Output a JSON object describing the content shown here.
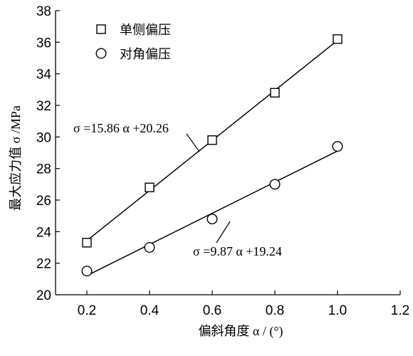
{
  "chart_data": {
    "type": "scatter",
    "xlabel": "偏斜角度 α / (°)",
    "ylabel": "最大应力值 σ /MPa",
    "xlim": [
      0.1,
      1.2
    ],
    "ylim": [
      20,
      38
    ],
    "xticks": [
      0.2,
      0.4,
      0.6,
      0.8,
      1.0,
      1.2
    ],
    "xtick_labels": [
      "0.2",
      "0.4",
      "0.6",
      "0.8",
      "1.0",
      "1.2"
    ],
    "yticks": [
      20,
      22,
      24,
      26,
      28,
      30,
      32,
      34,
      36,
      38
    ],
    "ytick_labels": [
      "20",
      "22",
      "24",
      "26",
      "28",
      "30",
      "32",
      "34",
      "36",
      "38"
    ],
    "legend_position": "top-left",
    "grid": false,
    "series": [
      {
        "name": "单侧偏压",
        "marker": "square",
        "x": [
          0.2,
          0.4,
          0.6,
          0.8,
          1.0
        ],
        "y": [
          23.3,
          26.8,
          29.8,
          32.8,
          36.2
        ],
        "fit": {
          "slope": 15.86,
          "intercept": 20.26,
          "label": "σ =15.86 α +20.26"
        }
      },
      {
        "name": "对角偏压",
        "marker": "circle",
        "x": [
          0.2,
          0.4,
          0.6,
          0.8,
          1.0
        ],
        "y": [
          21.5,
          23.0,
          24.8,
          27.0,
          29.4
        ],
        "fit": {
          "slope": 9.87,
          "intercept": 19.24,
          "label": "σ =9.87 α +19.24"
        }
      }
    ]
  }
}
